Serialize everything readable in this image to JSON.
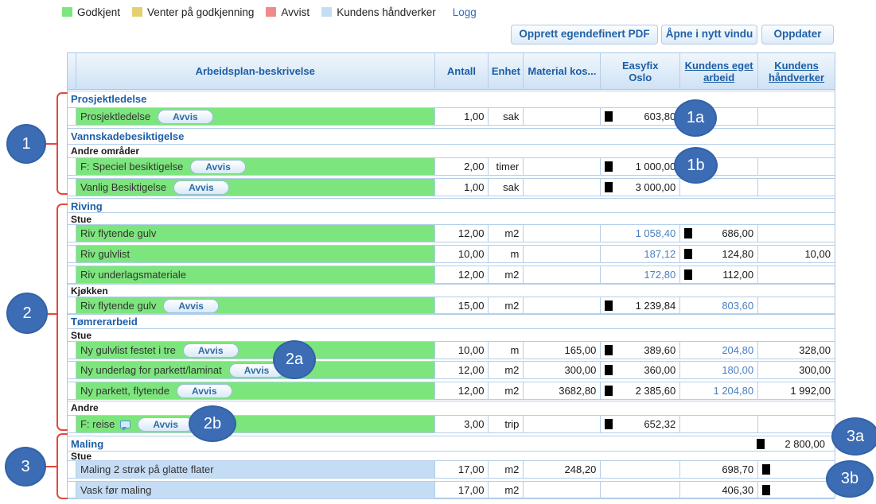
{
  "legend": {
    "items": [
      {
        "label": "Godkjent",
        "color": "#7de57d"
      },
      {
        "label": "Venter på godkjenning",
        "color": "#e3d171"
      },
      {
        "label": "Avvist",
        "color": "#f08a8a"
      },
      {
        "label": "Kundens håndverker",
        "color": "#c5ddf4"
      }
    ],
    "logg_label": "Logg"
  },
  "toolbar": {
    "buttons": [
      "Opprett egendefinert PDF",
      "Åpne i nytt vindu",
      "Oppdater"
    ]
  },
  "table": {
    "columns": [
      {
        "key": "status",
        "lines": [],
        "link": false
      },
      {
        "key": "desc",
        "lines": [
          "Arbeidsplan-beskrivelse"
        ],
        "link": false
      },
      {
        "key": "antall",
        "lines": [
          "Antall"
        ],
        "link": false
      },
      {
        "key": "enhet",
        "lines": [
          "Enhet"
        ],
        "link": false
      },
      {
        "key": "material",
        "lines": [
          "Material kos..."
        ],
        "link": false
      },
      {
        "key": "easyfix",
        "lines": [
          "Easyfix",
          "Oslo"
        ],
        "link": false
      },
      {
        "key": "kea",
        "lines": [
          "Kundens eget",
          "arbeid"
        ],
        "link": true
      },
      {
        "key": "kh",
        "lines": [
          "Kundens",
          "håndverker"
        ],
        "link": true
      }
    ],
    "avvis_label": "Avvis",
    "rows": [
      {
        "type": "section",
        "label": "Prosjektledelse"
      },
      {
        "type": "item",
        "fill": "green",
        "label": "Prosjektledelse",
        "avvis": true,
        "antall": "1,00",
        "enhet": "sak",
        "easyfix": {
          "text": "603,80",
          "marker": true
        }
      },
      {
        "type": "section",
        "label": "Vannskadebesiktigelse"
      },
      {
        "type": "sub",
        "label": "Andre områder"
      },
      {
        "type": "item",
        "fill": "green",
        "label": "F: Speciel besiktigelse",
        "avvis": true,
        "antall": "2,00",
        "enhet": "timer",
        "easyfix": {
          "text": "1 000,00",
          "marker": true
        }
      },
      {
        "type": "item",
        "fill": "green",
        "label": "Vanlig Besiktigelse",
        "avvis": true,
        "antall": "1,00",
        "enhet": "sak",
        "easyfix": {
          "text": "3 000,00",
          "marker": true
        }
      },
      {
        "type": "section",
        "label": "Riving"
      },
      {
        "type": "sub",
        "label": "Stue"
      },
      {
        "type": "item",
        "fill": "green",
        "label": "Riv flytende gulv",
        "antall": "12,00",
        "enhet": "m2",
        "easyfix": {
          "text": "1 058,40",
          "blue": true
        },
        "kea": {
          "text": "686,00",
          "marker": true
        }
      },
      {
        "type": "item",
        "fill": "green",
        "label": "Riv gulvlist",
        "antall": "10,00",
        "enhet": "m",
        "easyfix": {
          "text": "187,12",
          "blue": true
        },
        "kea": {
          "text": "124,80",
          "marker": true
        },
        "kh": {
          "text": "10,00"
        }
      },
      {
        "type": "item",
        "fill": "green",
        "label": "Riv underlagsmateriale",
        "antall": "12,00",
        "enhet": "m2",
        "easyfix": {
          "text": "172,80",
          "blue": true
        },
        "kea": {
          "text": "112,00",
          "marker": true
        }
      },
      {
        "type": "sub",
        "label": "Kjøkken"
      },
      {
        "type": "item",
        "fill": "green",
        "label": "Riv flytende gulv",
        "avvis": true,
        "antall": "15,00",
        "enhet": "m2",
        "easyfix": {
          "text": "1 239,84",
          "marker": true
        },
        "kea": {
          "text": "803,60",
          "blue": true
        }
      },
      {
        "type": "section",
        "label": "Tømrerarbeid"
      },
      {
        "type": "sub",
        "label": "Stue"
      },
      {
        "type": "item",
        "fill": "green",
        "label": "Ny gulvlist festet i tre",
        "avvis": true,
        "antall": "10,00",
        "enhet": "m",
        "material": {
          "text": "165,00"
        },
        "easyfix": {
          "text": "389,60",
          "marker": true
        },
        "kea": {
          "text": "204,80",
          "blue": true
        },
        "kh": {
          "text": "328,00"
        }
      },
      {
        "type": "item",
        "fill": "green",
        "label": "Ny underlag for parkett/laminat",
        "avvis": true,
        "antall": "12,00",
        "enhet": "m2",
        "material": {
          "text": "300,00"
        },
        "easyfix": {
          "text": "360,00",
          "marker": true
        },
        "kea": {
          "text": "180,00",
          "blue": true
        },
        "kh": {
          "text": "300,00"
        }
      },
      {
        "type": "item",
        "fill": "green",
        "label": "Ny parkett, flytende",
        "avvis": true,
        "antall": "12,00",
        "enhet": "m2",
        "material": {
          "text": "3682,80"
        },
        "easyfix": {
          "text": "2 385,60",
          "marker": true
        },
        "kea": {
          "text": "1 204,80",
          "blue": true
        },
        "kh": {
          "text": "1 992,00"
        }
      },
      {
        "type": "sub",
        "label": "Andre"
      },
      {
        "type": "item",
        "fill": "green",
        "label": "F: reise",
        "note": true,
        "avvis": true,
        "antall": "3,00",
        "enhet": "trip",
        "easyfix": {
          "text": "652,32",
          "marker": true
        }
      },
      {
        "type": "section",
        "label": "Maling",
        "kh": {
          "text": "2 800,00",
          "marker": true
        }
      },
      {
        "type": "sub",
        "label": "Stue"
      },
      {
        "type": "item",
        "fill": "blue",
        "label": "Maling 2 strøk på glatte flater",
        "antall": "17,00",
        "enhet": "m2",
        "material": {
          "text": "248,20"
        },
        "kea": {
          "text": "698,70"
        },
        "kh": {
          "marker": true
        }
      },
      {
        "type": "item",
        "fill": "blue",
        "label": "Vask før maling",
        "antall": "17,00",
        "enhet": "m2",
        "kea": {
          "text": "406,30"
        },
        "kh": {
          "marker": true
        }
      }
    ]
  },
  "annotations": {
    "circles": [
      {
        "label": "1"
      },
      {
        "label": "1a"
      },
      {
        "label": "1b"
      },
      {
        "label": "2"
      },
      {
        "label": "2a"
      },
      {
        "label": "2b"
      },
      {
        "label": "3"
      },
      {
        "label": "3a"
      },
      {
        "label": "3b"
      }
    ]
  }
}
